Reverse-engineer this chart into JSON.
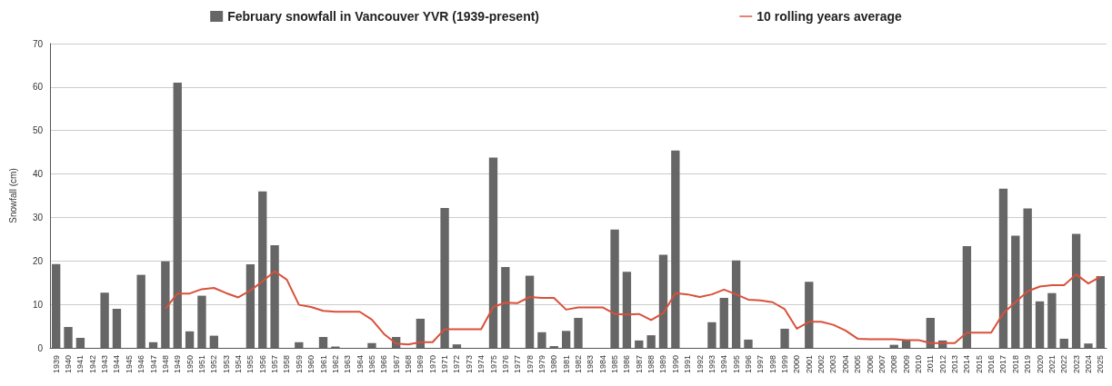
{
  "chart_data": {
    "type": "bar",
    "ylabel": "Snowfall (cm)",
    "categories": [
      "1939",
      "1940",
      "1941",
      "1942",
      "1943",
      "1944",
      "1945",
      "1946",
      "1947",
      "1948",
      "1949",
      "1950",
      "1951",
      "1952",
      "1953",
      "1954",
      "1955",
      "1956",
      "1957",
      "1958",
      "1959",
      "1960",
      "1961",
      "1962",
      "1963",
      "1964",
      "1965",
      "1966",
      "1967",
      "1968",
      "1969",
      "1970",
      "1971",
      "1972",
      "1973",
      "1974",
      "1975",
      "1976",
      "1977",
      "1978",
      "1979",
      "1980",
      "1981",
      "1982",
      "1983",
      "1984",
      "1985",
      "1986",
      "1987",
      "1988",
      "1989",
      "1990",
      "1991",
      "1992",
      "1993",
      "1994",
      "1995",
      "1996",
      "1997",
      "1998",
      "1999",
      "2000",
      "2001",
      "2002",
      "2003",
      "2004",
      "2005",
      "2006",
      "2007",
      "2008",
      "2009",
      "2010",
      "2011",
      "2012",
      "2013",
      "2014",
      "2015",
      "2016",
      "2017",
      "2018",
      "2019",
      "2020",
      "2021",
      "2022",
      "2023",
      "2024",
      "2025"
    ],
    "series": [
      {
        "name": "February snowfall in Vancouver YVR (1939-present)",
        "color": "#666666",
        "values": [
          19.3,
          4.8,
          2.3,
          0,
          12.7,
          9,
          0,
          16.8,
          1.3,
          19.9,
          61,
          3.8,
          12,
          2.8,
          0,
          0,
          19.2,
          36,
          23.6,
          0,
          1.3,
          0,
          2.5,
          0.3,
          0,
          0,
          1.1,
          0,
          2.5,
          0,
          6.7,
          0,
          32.2,
          0.8,
          0,
          0,
          43.8,
          18.6,
          0,
          16.6,
          3.6,
          0.4,
          3.9,
          6.9,
          0,
          0,
          27.2,
          17.5,
          1.7,
          2.9,
          21.4,
          45.4,
          0,
          0,
          5.9,
          11.5,
          20.1,
          1.9,
          0,
          0,
          4.4,
          0,
          15.2,
          0,
          0,
          0,
          0,
          0,
          0,
          0.7,
          1.7,
          0,
          6.9,
          1.7,
          0,
          23.4,
          0,
          0,
          36.6,
          25.8,
          32.1,
          10.7,
          12.6,
          2.1,
          26.2,
          1.0,
          16.5
        ]
      },
      {
        "name": "10 rolling years average",
        "type": "line",
        "color": "#d9503a",
        "values": [
          null,
          null,
          null,
          null,
          null,
          null,
          null,
          null,
          null,
          9,
          12.5,
          12.5,
          13.5,
          13.8,
          12.6,
          11.6,
          13.2,
          15.3,
          17.6,
          15.7,
          9.9,
          9.4,
          8.5,
          8.3,
          8.3,
          8.3,
          6.5,
          3.2,
          1.0,
          0.8,
          1.3,
          1.3,
          4.3,
          4.3,
          4.3,
          4.3,
          9.4,
          10.4,
          10.3,
          11.7,
          11.5,
          11.5,
          8.8,
          9.3,
          9.3,
          9.3,
          7.8,
          7.7,
          7.8,
          6.4,
          8.0,
          12.6,
          12.3,
          11.7,
          12.3,
          13.4,
          12.3,
          11.1,
          10.9,
          10.5,
          8.9,
          4.4,
          6.0,
          6.0,
          5.3,
          4.0,
          2.1,
          2.0,
          2.0,
          2.0,
          1.8,
          1.8,
          1.1,
          1.1,
          1.1,
          3.5,
          3.5,
          3.5,
          8.0,
          10.5,
          13.0,
          14.1,
          14.4,
          14.4,
          16.9,
          14.8,
          16.4
        ]
      }
    ],
    "ylim": [
      0,
      70
    ],
    "yticks": [
      0,
      10,
      20,
      30,
      40,
      50,
      60,
      70
    ],
    "grid": "y",
    "legend": "top",
    "marker": "none",
    "line_style": "solid"
  }
}
